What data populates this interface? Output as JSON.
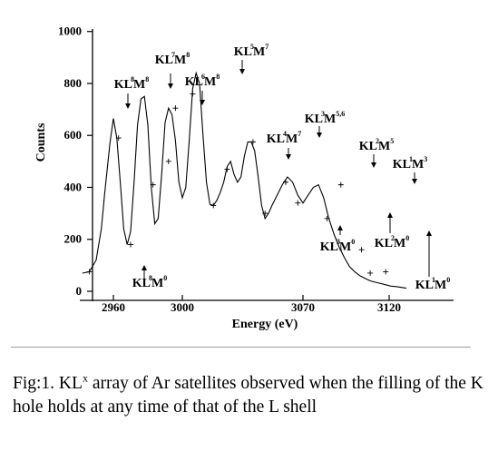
{
  "chart_data": {
    "type": "line",
    "xlabel": "Energy (eV)",
    "ylabel": "Counts",
    "x_ticks": [
      2960,
      3000,
      3070,
      3120
    ],
    "y_ticks": [
      0,
      200,
      400,
      600,
      800,
      1000
    ],
    "xlim": [
      2940,
      3130
    ],
    "ylim": [
      0,
      1000
    ],
    "curve": {
      "x": [
        2942,
        2946,
        2950,
        2953,
        2955,
        2958,
        2960,
        2962,
        2964,
        2966,
        2968,
        2970,
        2972,
        2974,
        2976,
        2978,
        2980,
        2982,
        2984,
        2986,
        2988,
        2990,
        2992,
        2994,
        2996,
        2998,
        3000,
        3002,
        3004,
        3006,
        3008,
        3010,
        3012,
        3014,
        3016,
        3018,
        3020,
        3022,
        3024,
        3026,
        3028,
        3030,
        3032,
        3034,
        3036,
        3038,
        3040,
        3042,
        3044,
        3046,
        3048,
        3050,
        3052,
        3055,
        3058,
        3061,
        3064,
        3067,
        3070,
        3073,
        3076,
        3079,
        3082,
        3085,
        3088,
        3091,
        3094,
        3097,
        3100,
        3103,
        3106,
        3109,
        3112,
        3115,
        3118,
        3121,
        3124,
        3127,
        3130
      ],
      "y": [
        70,
        75,
        120,
        240,
        380,
        570,
        665,
        590,
        420,
        240,
        180,
        230,
        420,
        640,
        740,
        750,
        640,
        400,
        260,
        280,
        450,
        650,
        705,
        680,
        580,
        420,
        360,
        400,
        580,
        780,
        840,
        800,
        600,
        420,
        335,
        330,
        350,
        380,
        420,
        480,
        500,
        450,
        420,
        440,
        520,
        575,
        575,
        540,
        440,
        330,
        280,
        300,
        330,
        370,
        410,
        440,
        420,
        370,
        340,
        370,
        400,
        410,
        360,
        280,
        220,
        170,
        130,
        95,
        75,
        60,
        50,
        40,
        35,
        30,
        25,
        20,
        18,
        15,
        12
      ]
    },
    "markers": {
      "x": [
        2946,
        2963,
        2970,
        2983,
        2992,
        2996,
        3006,
        3018,
        3026,
        3041,
        3048,
        3060,
        3067,
        3084,
        3092,
        3104,
        3109,
        3118
      ],
      "y": [
        75,
        590,
        180,
        410,
        500,
        705,
        760,
        330,
        470,
        575,
        300,
        420,
        340,
        280,
        410,
        160,
        70,
        75
      ]
    },
    "peak_labels": [
      {
        "main": "KL",
        "sup": "8",
        "mid": "M",
        "sup2": "8"
      },
      {
        "main": "KL",
        "sup": "7",
        "mid": "M",
        "sup2": "8"
      },
      {
        "main": "KL",
        "sup": "6",
        "mid": "M",
        "sup2": "8"
      },
      {
        "main": "KL",
        "sup": "5",
        "mid": "M",
        "sup2": "7"
      },
      {
        "main": "KL",
        "sup": "4",
        "mid": "M",
        "sup2": "7"
      },
      {
        "main": "KL",
        "sup": "3",
        "mid": "M",
        "sup2": "5,6"
      },
      {
        "main": "KL",
        "sup": "2",
        "mid": "M",
        "sup2": "5"
      },
      {
        "main": "KL",
        "sup": "1",
        "mid": "M",
        "sup2": "3"
      },
      {
        "main": "KL",
        "sup": "8",
        "mid": "M",
        "sup2": "0"
      },
      {
        "main": "KL",
        "sup": "3",
        "mid": "M",
        "sup2": "0"
      },
      {
        "main": "KL",
        "sup": "2",
        "mid": "M",
        "sup2": "0"
      },
      {
        "main": "KL",
        "sup": "1",
        "mid": "M",
        "sup2": "0"
      }
    ]
  },
  "caption": {
    "prefix": "Fig:1. KL",
    "sup": "x",
    "suffix": " array of Ar satellites observed when the filling of the K hole holds at any time of that of the L shell"
  }
}
